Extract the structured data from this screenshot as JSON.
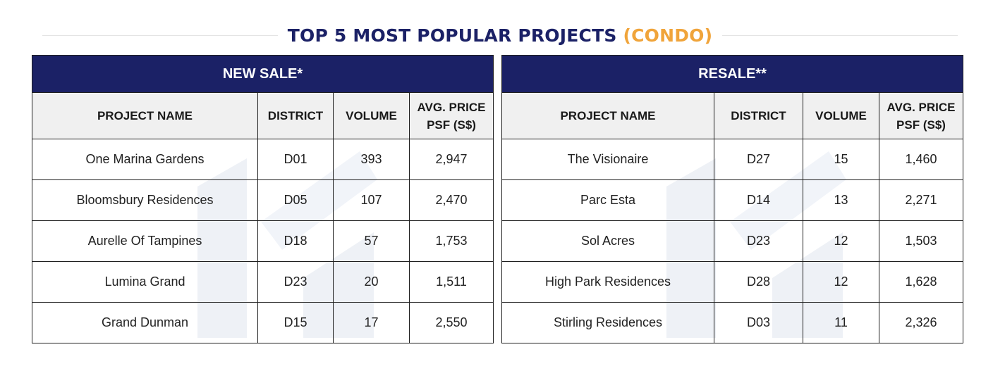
{
  "title": {
    "main": "TOP 5 MOST POPULAR PROJECTS",
    "accent": "(CONDO)"
  },
  "colors": {
    "navy": "#1b2166",
    "accent": "#f0a43a",
    "header_bg": "#f0f0f0"
  },
  "columns": {
    "project": "PROJECT NAME",
    "district": "DISTRICT",
    "volume": "VOLUME",
    "price_l1": "AVG. PRICE",
    "price_l2": "PSF (S$)"
  },
  "new_sale": {
    "heading": "NEW SALE*",
    "rows": [
      {
        "project": "One Marina Gardens",
        "district": "D01",
        "volume": "393",
        "price": "2,947"
      },
      {
        "project": "Bloomsbury Residences",
        "district": "D05",
        "volume": "107",
        "price": "2,470"
      },
      {
        "project": "Aurelle Of Tampines",
        "district": "D18",
        "volume": "57",
        "price": "1,753"
      },
      {
        "project": "Lumina Grand",
        "district": "D23",
        "volume": "20",
        "price": "1,511"
      },
      {
        "project": "Grand Dunman",
        "district": "D15",
        "volume": "17",
        "price": "2,550"
      }
    ]
  },
  "resale": {
    "heading": "RESALE**",
    "rows": [
      {
        "project": "The Visionaire",
        "district": "D27",
        "volume": "15",
        "price": "1,460"
      },
      {
        "project": "Parc Esta",
        "district": "D14",
        "volume": "13",
        "price": "2,271"
      },
      {
        "project": "Sol Acres",
        "district": "D23",
        "volume": "12",
        "price": "1,503"
      },
      {
        "project": "High Park Residences",
        "district": "D28",
        "volume": "12",
        "price": "1,628"
      },
      {
        "project": "Stirling Residences",
        "district": "D03",
        "volume": "11",
        "price": "2,326"
      }
    ]
  }
}
